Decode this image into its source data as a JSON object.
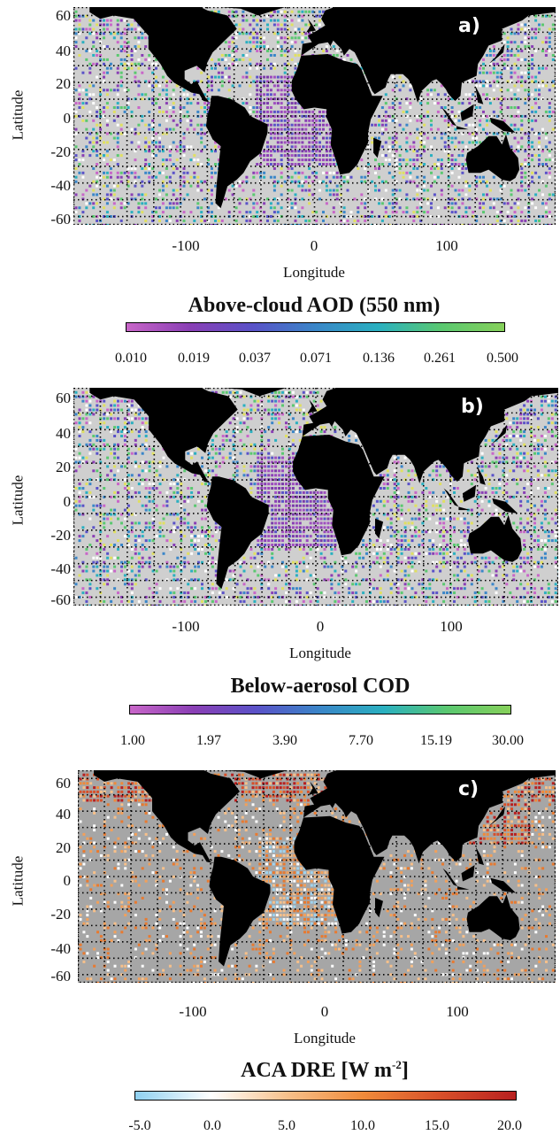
{
  "panels": [
    {
      "id": "a",
      "tag": "a)",
      "ylabel": "Latitude",
      "xlabel": "Longitude",
      "yticks": [
        "60",
        "40",
        "20",
        "0",
        "-20",
        "-40",
        "-60"
      ],
      "xticks": [
        "-100",
        "0",
        "100"
      ],
      "colorbar_title": "Above-cloud AOD (550 nm)",
      "colorbar_ticks": [
        "0.010",
        "0.019",
        "0.037",
        "0.071",
        "0.136",
        "0.261",
        "0.500"
      ],
      "colorbar_colors": [
        "#c866c8",
        "#8a3fb5",
        "#5a52c8",
        "#3a86c8",
        "#2ab0c0",
        "#5ac870",
        "#86d05a"
      ],
      "ocean_color": "#cfcfcf",
      "land_color": "#000000"
    },
    {
      "id": "b",
      "tag": "b)",
      "ylabel": "Latitude",
      "xlabel": "Longitude",
      "yticks": [
        "60",
        "40",
        "20",
        "0",
        "-20",
        "-40",
        "-60"
      ],
      "xticks": [
        "-100",
        "0",
        "100"
      ],
      "colorbar_title": "Below-aerosol COD",
      "colorbar_ticks": [
        "1.00",
        "1.97",
        "3.90",
        "7.70",
        "15.19",
        "30.00"
      ],
      "colorbar_colors": [
        "#c866c8",
        "#8a3fb5",
        "#5a52c8",
        "#3a86c8",
        "#2ab0c0",
        "#5ac870",
        "#86d05a"
      ],
      "ocean_color": "#cfcfcf",
      "land_color": "#000000"
    },
    {
      "id": "c",
      "tag": "c)",
      "ylabel": "Latitude",
      "xlabel": "Longitude",
      "yticks": [
        "60",
        "40",
        "20",
        "0",
        "-20",
        "-40",
        "-60"
      ],
      "xticks": [
        "-100",
        "0",
        "100"
      ],
      "colorbar_title": "ACA DRE [W m",
      "colorbar_title_sup": "-2",
      "colorbar_title_end": "]",
      "colorbar_ticks": [
        "-5.0",
        "0.0",
        "5.0",
        "10.0",
        "15.0",
        "20.0"
      ],
      "colorbar_colors": [
        "#8fd0f0",
        "#ffffff",
        "#f7c08a",
        "#f08a3a",
        "#d8502a",
        "#b82020"
      ],
      "ocean_color": "#a6a6a6",
      "land_color": "#000000"
    }
  ]
}
